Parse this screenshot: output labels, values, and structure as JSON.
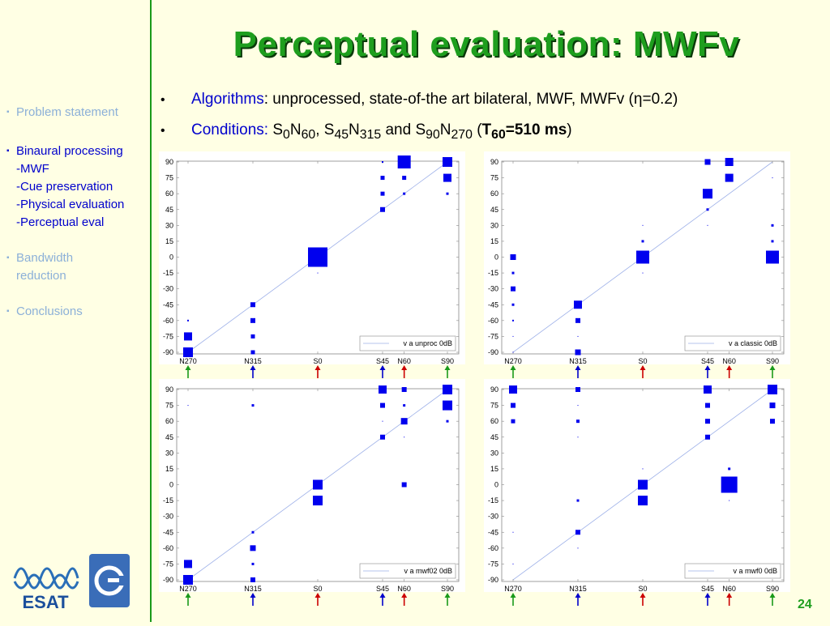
{
  "slide": {
    "title": "Perceptual evaluation: MWFv",
    "page_number": "24"
  },
  "sidebar": {
    "items": [
      {
        "label": "Problem statement",
        "state": "dim"
      },
      {
        "label": "Binaural processing",
        "state": "active"
      },
      {
        "label": "-MWF",
        "state": "sub"
      },
      {
        "label": "-Cue preservation",
        "state": "sub"
      },
      {
        "label": "-Physical evaluation",
        "state": "sub"
      },
      {
        "label": "-Perceptual eval",
        "state": "sub"
      },
      {
        "label": "Bandwidth",
        "state": "dim"
      },
      {
        "label": "reduction",
        "state": "dim"
      },
      {
        "label": "Conclusions",
        "state": "dim"
      }
    ],
    "bullet_char": "▪"
  },
  "bullets": {
    "line1": {
      "keyword": "Algorithms",
      "text": ": unprocessed, state-of-the art bilateral, MWF, MWFv (",
      "symbol": "η",
      "tail": "=0.2)"
    },
    "line2": {
      "keyword": "Conditions",
      "colon": ": ",
      "s0": "S",
      "s0sub": "0",
      "n60": "N",
      "n60sub": "60",
      "comma": ", ",
      "s45": "S",
      "s45sub": "45",
      "n315": "N",
      "n315sub": "315",
      "and": " and ",
      "s90": "S",
      "s90sub": "90",
      "n270": "N",
      "n270sub": "270",
      "paren_open": " (",
      "t": "T",
      "tsub": "60",
      "tval": "=510 ms",
      "paren_close": ")"
    }
  },
  "colors": {
    "title_green": "#1e9e1e",
    "marker_blue": "#0000ee",
    "arrow_green": "#1a9a1a",
    "arrow_blue": "#0000cc",
    "arrow_red": "#cc0000"
  },
  "chart_data": [
    {
      "type": "scatter",
      "legend": "v a unproc 0dB",
      "x_ticks": [
        "N270",
        "N315",
        "S0",
        "S45",
        "N60",
        "S90"
      ],
      "y_ticks": [
        "90",
        "75",
        "60",
        "45",
        "30",
        "15",
        "0",
        "-15",
        "-30",
        "-45",
        "-60",
        "-75",
        "-90"
      ],
      "points": [
        {
          "x": -90,
          "y": -60,
          "s": 1
        },
        {
          "x": -90,
          "y": -75,
          "s": 5
        },
        {
          "x": -90,
          "y": -90,
          "s": 6
        },
        {
          "x": -45,
          "y": -45,
          "s": 3
        },
        {
          "x": -45,
          "y": -60,
          "s": 3
        },
        {
          "x": -45,
          "y": -75,
          "s": 2.5
        },
        {
          "x": -45,
          "y": -90,
          "s": 2.5
        },
        {
          "x": 0,
          "y": 0,
          "s": 12
        },
        {
          "x": 0,
          "y": -15,
          "s": 0.5
        },
        {
          "x": 45,
          "y": 90,
          "s": 1
        },
        {
          "x": 45,
          "y": 75,
          "s": 2.5
        },
        {
          "x": 45,
          "y": 60,
          "s": 2.5
        },
        {
          "x": 45,
          "y": 45,
          "s": 3
        },
        {
          "x": 60,
          "y": 90,
          "s": 8
        },
        {
          "x": 60,
          "y": 75,
          "s": 2.5
        },
        {
          "x": 60,
          "y": 60,
          "s": 1.5
        },
        {
          "x": 90,
          "y": 90,
          "s": 6
        },
        {
          "x": 90,
          "y": 75,
          "s": 5
        },
        {
          "x": 90,
          "y": 60,
          "s": 1.5
        }
      ]
    },
    {
      "type": "scatter",
      "legend": "v a classic 0dB",
      "x_ticks": [
        "N270",
        "N315",
        "S0",
        "S45",
        "N60",
        "S90"
      ],
      "y_ticks": [
        "90",
        "75",
        "60",
        "45",
        "30",
        "15",
        "0",
        "-15",
        "-30",
        "-45",
        "-60",
        "-75",
        "-90"
      ],
      "points": [
        {
          "x": -90,
          "y": 0,
          "s": 3.5
        },
        {
          "x": -90,
          "y": -15,
          "s": 1.5
        },
        {
          "x": -90,
          "y": -30,
          "s": 3
        },
        {
          "x": -90,
          "y": -45,
          "s": 1.5
        },
        {
          "x": -90,
          "y": -60,
          "s": 1
        },
        {
          "x": -90,
          "y": -75,
          "s": 0.5
        },
        {
          "x": -90,
          "y": -90,
          "s": 0.5
        },
        {
          "x": -45,
          "y": -45,
          "s": 5
        },
        {
          "x": -45,
          "y": -60,
          "s": 3
        },
        {
          "x": -45,
          "y": -75,
          "s": 0.5
        },
        {
          "x": -45,
          "y": -90,
          "s": 3.5
        },
        {
          "x": 0,
          "y": 30,
          "s": 0.5
        },
        {
          "x": 0,
          "y": 15,
          "s": 1.5
        },
        {
          "x": 0,
          "y": 0,
          "s": 8
        },
        {
          "x": 0,
          "y": -15,
          "s": 0.5
        },
        {
          "x": 45,
          "y": 90,
          "s": 3.5
        },
        {
          "x": 45,
          "y": 60,
          "s": 6
        },
        {
          "x": 45,
          "y": 45,
          "s": 1.5
        },
        {
          "x": 45,
          "y": 30,
          "s": 0.5
        },
        {
          "x": 60,
          "y": 90,
          "s": 5
        },
        {
          "x": 60,
          "y": 75,
          "s": 5
        },
        {
          "x": 90,
          "y": 75,
          "s": 0.5
        },
        {
          "x": 90,
          "y": 30,
          "s": 1.5
        },
        {
          "x": 90,
          "y": 15,
          "s": 1.5
        },
        {
          "x": 90,
          "y": 0,
          "s": 8
        }
      ]
    },
    {
      "type": "scatter",
      "legend": "v a mwf02 0dB",
      "x_ticks": [
        "N270",
        "N315",
        "S0",
        "S45",
        "N60",
        "S90"
      ],
      "y_ticks": [
        "90",
        "75",
        "60",
        "45",
        "30",
        "15",
        "0",
        "-15",
        "-30",
        "-45",
        "-60",
        "-75",
        "-90"
      ],
      "points": [
        {
          "x": -90,
          "y": 75,
          "s": 0.5
        },
        {
          "x": -90,
          "y": -75,
          "s": 5
        },
        {
          "x": -90,
          "y": -90,
          "s": 6
        },
        {
          "x": -45,
          "y": 75,
          "s": 1.5
        },
        {
          "x": -45,
          "y": -45,
          "s": 1.5
        },
        {
          "x": -45,
          "y": -60,
          "s": 3.5
        },
        {
          "x": -45,
          "y": -75,
          "s": 1.5
        },
        {
          "x": -45,
          "y": -90,
          "s": 3
        },
        {
          "x": 0,
          "y": 0,
          "s": 6
        },
        {
          "x": 0,
          "y": -15,
          "s": 6
        },
        {
          "x": 45,
          "y": 90,
          "s": 5
        },
        {
          "x": 45,
          "y": 75,
          "s": 3
        },
        {
          "x": 45,
          "y": 60,
          "s": 0.5
        },
        {
          "x": 45,
          "y": 45,
          "s": 3
        },
        {
          "x": 60,
          "y": 90,
          "s": 3
        },
        {
          "x": 60,
          "y": 75,
          "s": 1.5
        },
        {
          "x": 60,
          "y": 60,
          "s": 4
        },
        {
          "x": 60,
          "y": 45,
          "s": 0.5
        },
        {
          "x": 60,
          "y": 0,
          "s": 3
        },
        {
          "x": 90,
          "y": 90,
          "s": 6
        },
        {
          "x": 90,
          "y": 75,
          "s": 6
        },
        {
          "x": 90,
          "y": 60,
          "s": 1.5
        }
      ]
    },
    {
      "type": "scatter",
      "legend": "v a mwf0 0dB",
      "x_ticks": [
        "N270",
        "N315",
        "S0",
        "S45",
        "N60",
        "S90"
      ],
      "y_ticks": [
        "90",
        "75",
        "60",
        "45",
        "30",
        "15",
        "0",
        "-15",
        "-30",
        "-45",
        "-60",
        "-75",
        "-90"
      ],
      "points": [
        {
          "x": -90,
          "y": 90,
          "s": 5
        },
        {
          "x": -90,
          "y": 75,
          "s": 3
        },
        {
          "x": -90,
          "y": 60,
          "s": 2.5
        },
        {
          "x": -90,
          "y": -45,
          "s": 0.5
        },
        {
          "x": -90,
          "y": -75,
          "s": 0.5
        },
        {
          "x": -45,
          "y": 90,
          "s": 3
        },
        {
          "x": -45,
          "y": 75,
          "s": 0.5
        },
        {
          "x": -45,
          "y": 60,
          "s": 2
        },
        {
          "x": -45,
          "y": 45,
          "s": 0.5
        },
        {
          "x": -45,
          "y": -15,
          "s": 1.5
        },
        {
          "x": -45,
          "y": -45,
          "s": 3
        },
        {
          "x": -45,
          "y": -60,
          "s": 0.5
        },
        {
          "x": 0,
          "y": 15,
          "s": 0.5
        },
        {
          "x": 0,
          "y": 0,
          "s": 6
        },
        {
          "x": 0,
          "y": -15,
          "s": 6
        },
        {
          "x": 45,
          "y": 90,
          "s": 5
        },
        {
          "x": 45,
          "y": 75,
          "s": 3
        },
        {
          "x": 45,
          "y": 60,
          "s": 3
        },
        {
          "x": 45,
          "y": 45,
          "s": 3
        },
        {
          "x": 60,
          "y": 15,
          "s": 1.5
        },
        {
          "x": 60,
          "y": 0,
          "s": 10
        },
        {
          "x": 60,
          "y": -15,
          "s": 0.5
        },
        {
          "x": 90,
          "y": 90,
          "s": 6
        },
        {
          "x": 90,
          "y": 75,
          "s": 3.5
        },
        {
          "x": 90,
          "y": 60,
          "s": 3
        }
      ]
    }
  ],
  "arrows": [
    {
      "label": "N270",
      "color": "green"
    },
    {
      "label": "N315",
      "color": "blue"
    },
    {
      "label": "S0",
      "color": "red"
    },
    {
      "label": "S45",
      "color": "blue"
    },
    {
      "label": "N60",
      "color": "red"
    },
    {
      "label": "S90",
      "color": "green"
    }
  ],
  "logos": {
    "esat_text": "ESAT"
  }
}
